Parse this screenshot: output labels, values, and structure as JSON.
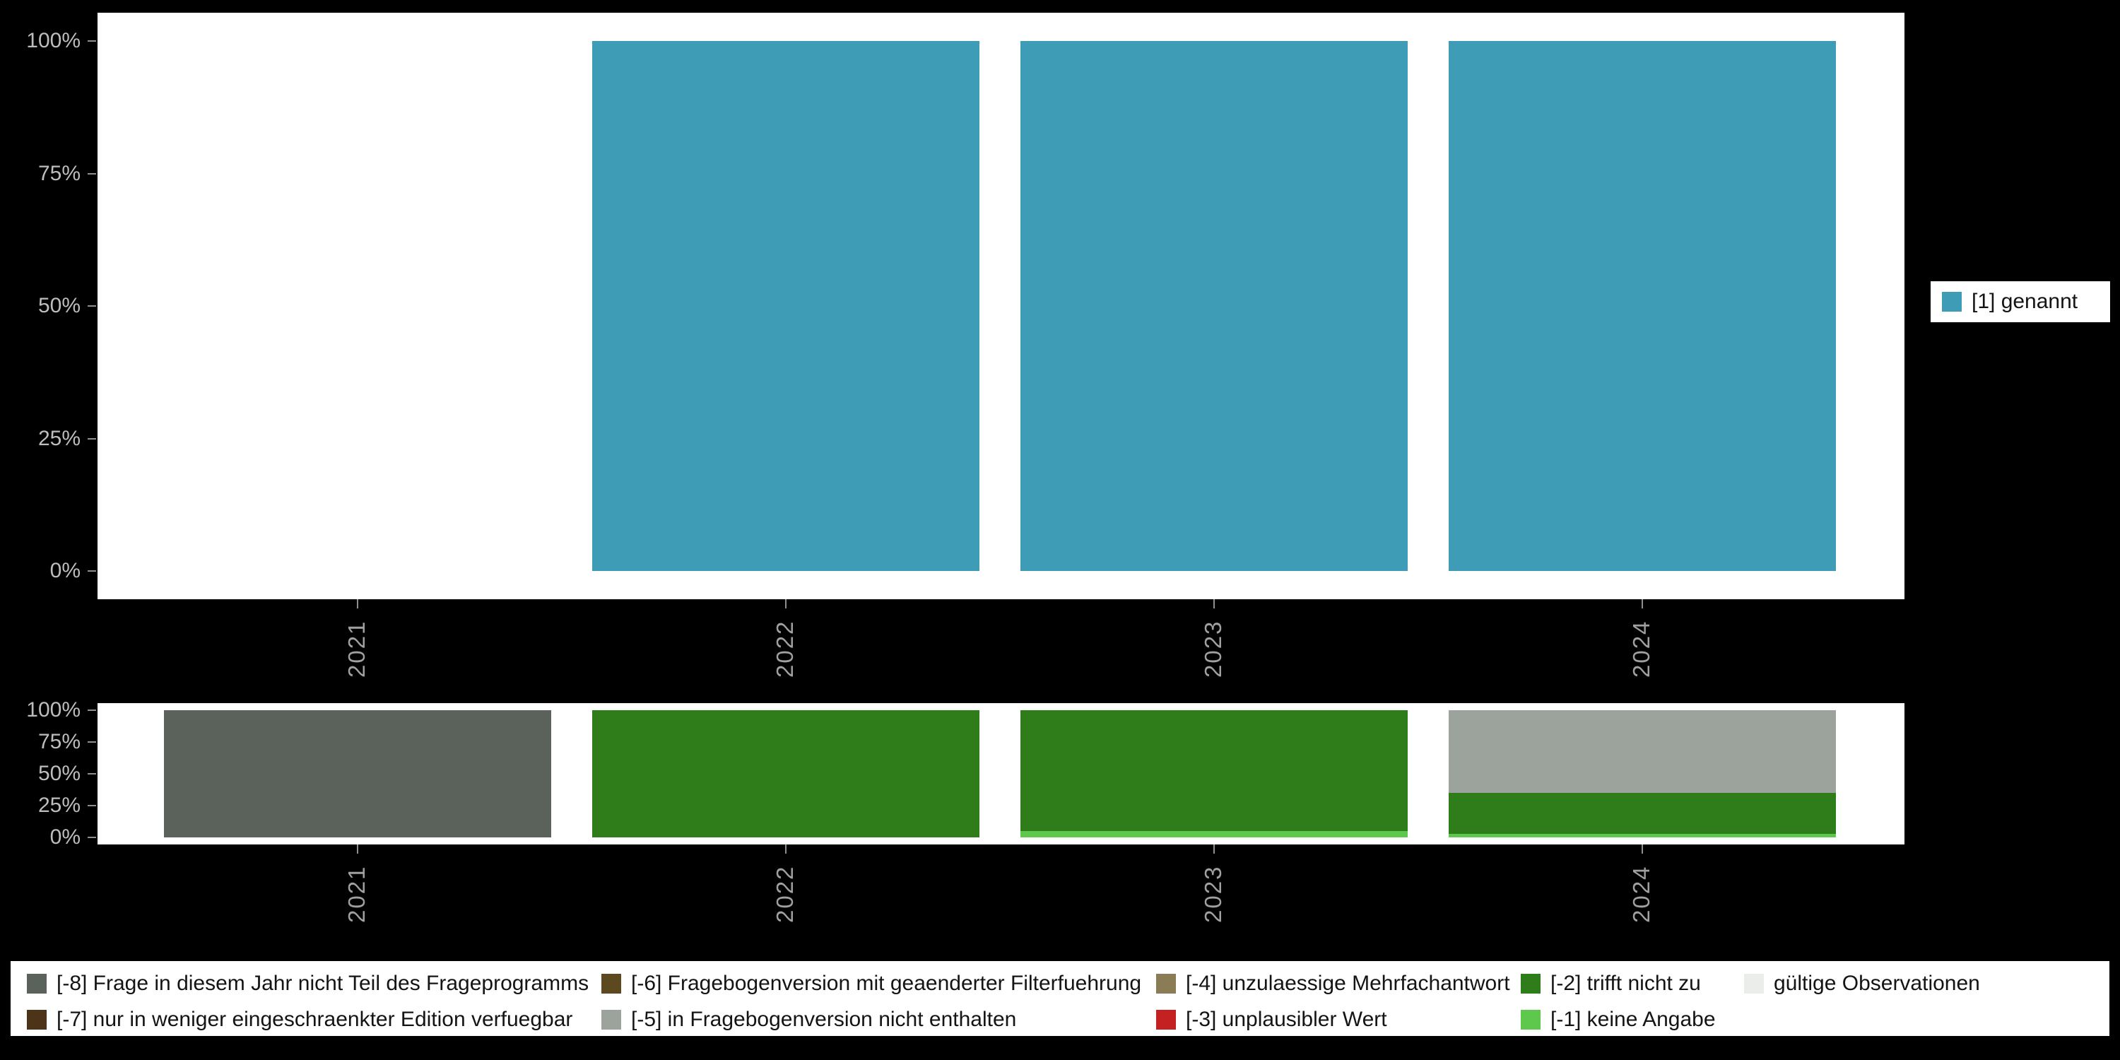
{
  "chart_data": [
    {
      "type": "bar",
      "title": "",
      "categories": [
        "2021",
        "2022",
        "2023",
        "2024"
      ],
      "series": [
        {
          "name": "[1] genannt",
          "color": "#3e9cb6",
          "values": [
            0,
            100,
            100,
            100
          ]
        }
      ],
      "xlabel": "",
      "ylabel": "",
      "ylim": [
        0,
        100
      ],
      "yticks": [
        "0%",
        "25%",
        "50%",
        "75%",
        "100%"
      ],
      "grid": false,
      "legend_position": "right"
    },
    {
      "type": "bar",
      "subtype": "stacked",
      "stack_order": "bottom-to-top",
      "title": "",
      "categories": [
        "2021",
        "2022",
        "2023",
        "2024"
      ],
      "series": [
        {
          "name": "[-1] keine Angabe",
          "color": "#5dc84b",
          "values": [
            0,
            0,
            5,
            3
          ]
        },
        {
          "name": "[-2] trifft nicht zu",
          "color": "#2e7d1a",
          "values": [
            0,
            100,
            95,
            32
          ]
        },
        {
          "name": "[-5] in Fragebogenversion nicht enthalten",
          "color": "#9ba39c",
          "values": [
            0,
            0,
            0,
            65
          ]
        },
        {
          "name": "[-8] Frage in diesem Jahr nicht Teil des Frageprogramms",
          "color": "#5a625b",
          "values": [
            100,
            0,
            0,
            0
          ]
        }
      ],
      "xlabel": "",
      "ylabel": "",
      "ylim": [
        0,
        100
      ],
      "yticks": [
        "0%",
        "25%",
        "50%",
        "75%",
        "100%"
      ],
      "grid": false,
      "legend_position": "bottom"
    }
  ],
  "value_legend": {
    "items": [
      {
        "label": "[1] genannt",
        "color": "#3e9cb6"
      }
    ]
  },
  "missing_legend": {
    "rows": [
      [
        {
          "label": "[-8] Frage in diesem Jahr nicht Teil des Frageprogramms",
          "color": "#5a625b"
        },
        {
          "label": "[-6] Fragebogenversion mit geaenderter Filterfuehrung",
          "color": "#5d491f"
        },
        {
          "label": "[-4] unzulaessige Mehrfachantwort",
          "color": "#8a7c54"
        },
        {
          "label": "[-2] trifft nicht zu",
          "color": "#2e7d1a"
        },
        {
          "label": "gültige Observationen",
          "color": "#eaedea"
        }
      ],
      [
        {
          "label": "[-7] nur in weniger eingeschraenkter Edition verfuegbar",
          "color": "#4d3418"
        },
        {
          "label": "[-5] in Fragebogenversion nicht enthalten",
          "color": "#9ba39c"
        },
        {
          "label": "[-3] unplausibler Wert",
          "color": "#c42222"
        },
        {
          "label": "[-1] keine Angabe",
          "color": "#5dc84b"
        }
      ]
    ]
  },
  "colors": {
    "background": "#000000",
    "panel": "#ffffff",
    "axis_text": "#bdbdbd",
    "axis_year_text": "#a0a0a0"
  }
}
